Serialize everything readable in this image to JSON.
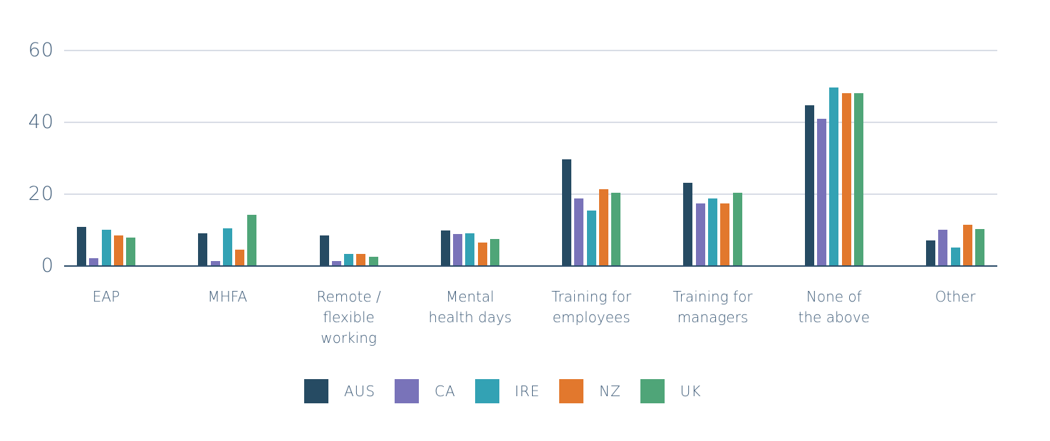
{
  "chart_data": {
    "type": "bar",
    "categories": [
      "EAP",
      "MHFA",
      "Remote / flexible working",
      "Mental health days",
      "Training for employees",
      "Training for managers",
      "None of the above",
      "Other"
    ],
    "categories_display": [
      [
        "EAP"
      ],
      [
        "MHFA"
      ],
      [
        "Remote /",
        "flexible",
        "working"
      ],
      [
        "Mental",
        "health days"
      ],
      [
        "Training for",
        "employees"
      ],
      [
        "Training for",
        "managers"
      ],
      [
        "None of",
        "the above"
      ],
      [
        "Other"
      ]
    ],
    "series": [
      {
        "name": "AUS",
        "color": "#264b63",
        "values": [
          10.8,
          9.1,
          8.6,
          9.9,
          29.7,
          23.1,
          44.7,
          7.2
        ]
      },
      {
        "name": "CA",
        "color": "#7973b9",
        "values": [
          2.2,
          1.3,
          1.3,
          8.9,
          18.9,
          17.5,
          41.0,
          10.1
        ]
      },
      {
        "name": "IRE",
        "color": "#33a2b4",
        "values": [
          10.1,
          10.5,
          3.3,
          9.1,
          15.5,
          18.9,
          49.8,
          5.2
        ]
      },
      {
        "name": "NZ",
        "color": "#e2782d",
        "values": [
          8.6,
          4.6,
          3.3,
          6.6,
          21.3,
          17.5,
          48.2,
          11.4
        ]
      },
      {
        "name": "UK",
        "color": "#4fa578",
        "values": [
          8.0,
          14.2,
          2.5,
          7.6,
          20.3,
          20.3,
          48.1,
          10.2
        ]
      }
    ],
    "ylim": [
      0,
      60
    ],
    "yticks": [
      0,
      20,
      40,
      60
    ],
    "xlabel": "",
    "ylabel": "",
    "grid": true,
    "legend_position": "bottom"
  },
  "colors": {
    "background": "#ffffff",
    "axis_text": "#44607c",
    "gridline": "#d9dde6",
    "axis_line": "#2e4e6b"
  }
}
